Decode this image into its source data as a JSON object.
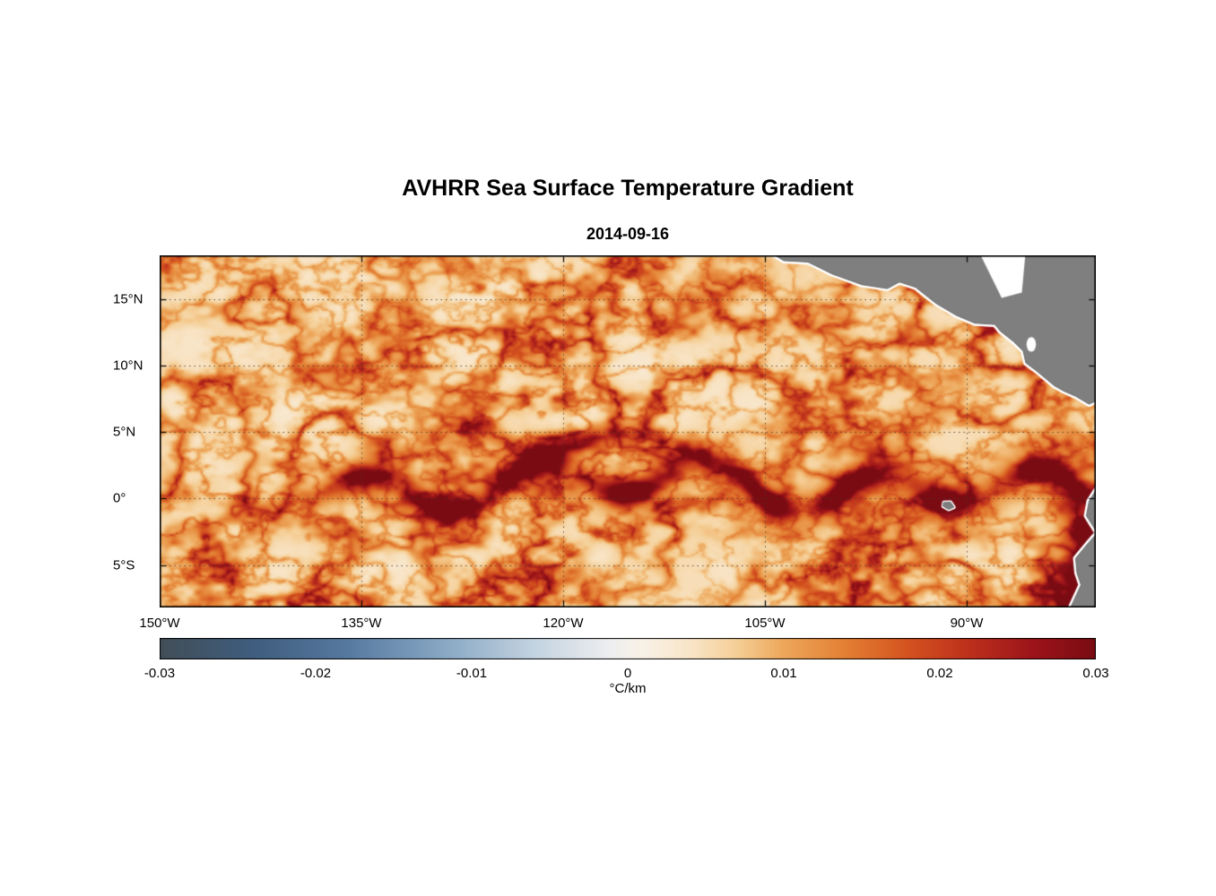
{
  "chart_data": {
    "type": "heatmap",
    "title": "AVHRR Sea Surface Temperature Gradient",
    "subtitle": "2014-09-16",
    "value_units": "°C/km",
    "x_axis": {
      "label": "",
      "ticks": [
        "150°W",
        "135°W",
        "120°W",
        "105°W",
        "90°W"
      ],
      "tick_values": [
        -150,
        -135,
        -120,
        -105,
        -90
      ],
      "range": [
        -150,
        -80.4
      ]
    },
    "y_axis": {
      "label": "",
      "ticks": [
        "15°N",
        "10°N",
        "5°N",
        "0°",
        "5°S"
      ],
      "tick_values": [
        15,
        10,
        5,
        0,
        -5
      ],
      "range": [
        -8.2,
        18.3
      ]
    },
    "colorbar": {
      "label": "°C/km",
      "ticks": [
        "-0.03",
        "-0.02",
        "-0.01",
        "0",
        "0.01",
        "0.02",
        "0.03"
      ],
      "tick_values": [
        -0.03,
        -0.02,
        -0.01,
        0,
        0.01,
        0.02,
        0.03
      ],
      "range": [
        -0.03,
        0.03
      ],
      "colormap_stops": [
        [
          -0.03,
          "#414e57"
        ],
        [
          -0.024,
          "#3f5d7e"
        ],
        [
          -0.018,
          "#56799f"
        ],
        [
          -0.012,
          "#86a6c3"
        ],
        [
          -0.006,
          "#c3d3e0"
        ],
        [
          -0.001,
          "#efeff0"
        ],
        [
          0.001,
          "#f8f1e6"
        ],
        [
          0.004,
          "#f8e5c8"
        ],
        [
          0.007,
          "#f5cf97"
        ],
        [
          0.01,
          "#eda75b"
        ],
        [
          0.014,
          "#e37f33"
        ],
        [
          0.018,
          "#d4521f"
        ],
        [
          0.022,
          "#bc2f1c"
        ],
        [
          0.026,
          "#9c1419"
        ],
        [
          0.03,
          "#7a0b13"
        ]
      ]
    },
    "grid": {
      "style": "dotted",
      "on": true
    },
    "annotations": [
      "Field is mostly weak (cream, ~0–0.005 °C/km) with filamentary orange ridges of enhanced gradient",
      "Strong meandering gradient front (red) along ~0–5°N from ~140°W eastward to the coast (tropical instability waves)",
      "Very strong gradients (dark red, ~0.03 °C/km) hugging the Ecuador/Peru coast in the lower right",
      "Gray land mask: Mexico and Central America in upper right, South America in lower right, Galápagos Islands near 91°W, 0.5°S"
    ],
    "land": {
      "fill": "#7f7f7f",
      "edge": "#6b6b6b",
      "halo": "#ffffff",
      "central_america": [
        [
          -104.9,
          18.7
        ],
        [
          -103.6,
          17.9
        ],
        [
          -101.8,
          17.8
        ],
        [
          -100.0,
          16.9
        ],
        [
          -97.8,
          16.1
        ],
        [
          -95.9,
          15.8
        ],
        [
          -95.0,
          16.3
        ],
        [
          -93.8,
          15.9
        ],
        [
          -92.3,
          14.7
        ],
        [
          -90.8,
          13.8
        ],
        [
          -89.4,
          13.2
        ],
        [
          -87.9,
          13.1
        ],
        [
          -87.5,
          12.6
        ],
        [
          -86.5,
          11.8
        ],
        [
          -85.8,
          11.1
        ],
        [
          -85.6,
          10.2
        ],
        [
          -84.8,
          9.6
        ],
        [
          -83.5,
          8.5
        ],
        [
          -82.8,
          8.1
        ],
        [
          -81.9,
          7.7
        ],
        [
          -80.9,
          7.1
        ],
        [
          -79.9,
          7.6
        ],
        [
          -79.9,
          18.7
        ]
      ],
      "caribbean_notch": [
        [
          -89.2,
          18.8
        ],
        [
          -87.4,
          15.1
        ],
        [
          -85.9,
          15.5
        ],
        [
          -85.6,
          18.8
        ]
      ],
      "south_america": [
        [
          -80.1,
          1.1
        ],
        [
          -80.9,
          -0.2
        ],
        [
          -81.1,
          -1.3
        ],
        [
          -80.6,
          -2.1
        ],
        [
          -80.3,
          -2.6
        ],
        [
          -81.0,
          -3.4
        ],
        [
          -81.9,
          -4.5
        ],
        [
          -81.8,
          -5.6
        ],
        [
          -81.5,
          -6.5
        ],
        [
          -82.5,
          -8.7
        ],
        [
          -78.0,
          -8.7
        ],
        [
          -78.0,
          1.1
        ]
      ],
      "galapagos": [
        [
          -91.7,
          -0.3
        ],
        [
          -91.2,
          -0.28
        ],
        [
          -90.95,
          -0.65
        ],
        [
          -91.35,
          -0.82
        ],
        [
          -91.75,
          -0.58
        ]
      ],
      "lake_nicaragua": {
        "lon": -85.2,
        "lat": 11.6,
        "rx": 0.35,
        "ry": 0.55
      }
    }
  }
}
